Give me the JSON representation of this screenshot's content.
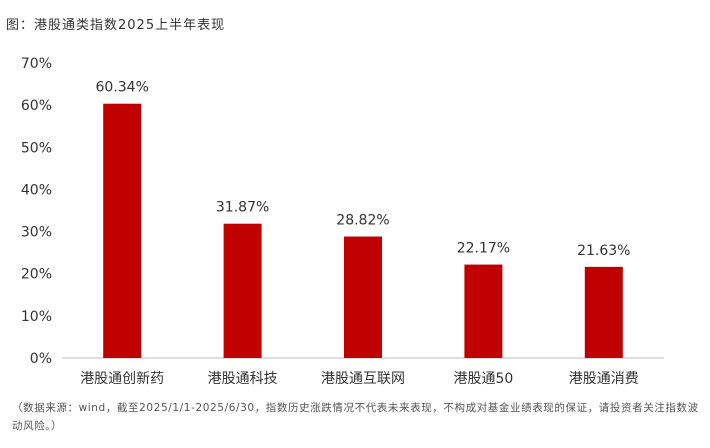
{
  "title": "图：港股通类指数2025上半年表现",
  "source_note": "（数据来源：wind，截至2025/1/1-2025/6/30，指数历史涨跌情况不代表未来表现，不构成对基金业绩表现的保证，请投资者关注指数波动风险。）",
  "colors": {
    "bar": "#c00000",
    "axis": "#bfbfbf",
    "text": "#333333"
  },
  "chart_data": {
    "type": "bar",
    "categories": [
      "港股通创新药",
      "港股通科技",
      "港股通互联网",
      "港股通50",
      "港股通消费"
    ],
    "values": [
      60.34,
      31.87,
      28.82,
      22.17,
      21.63
    ],
    "data_labels": [
      "60.34%",
      "31.87%",
      "28.82%",
      "22.17%",
      "21.63%"
    ],
    "yticks": [
      "0%",
      "10%",
      "20%",
      "30%",
      "40%",
      "50%",
      "60%",
      "70%"
    ],
    "ylim": [
      0,
      70
    ],
    "grid": false,
    "legend": "none"
  }
}
